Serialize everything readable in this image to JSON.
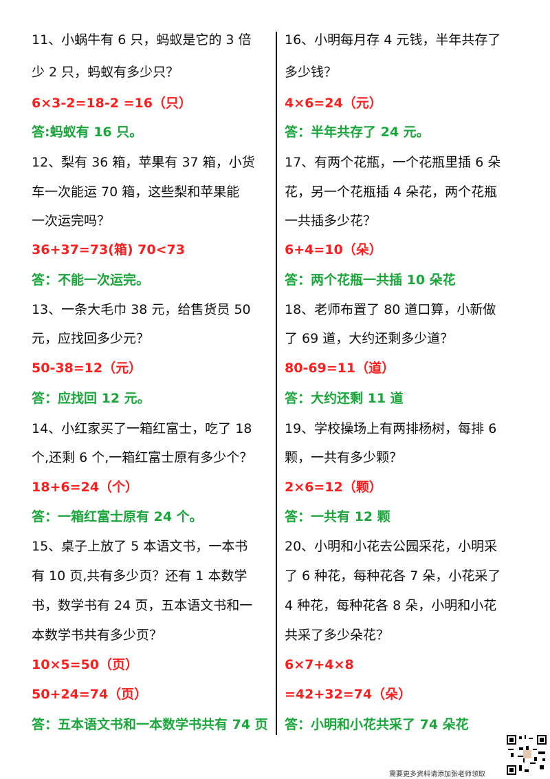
{
  "left": [
    {
      "text": "11、小蜗牛有 6 只，蚂蚁是它的 3 倍",
      "type": "q"
    },
    {
      "text": "少 2 只，蚂蚁有多少只？",
      "type": "q"
    },
    {
      "text": "6×3-2=18-2 =16（只）",
      "type": "calc"
    },
    {
      "text": "答:蚂蚁有 16 只。",
      "type": "ans"
    },
    {
      "text": "12、梨有 36 箱，苹果有 37 箱，小货",
      "type": "q"
    },
    {
      "text": "车一次能运 70 箱，这些梨和苹果能",
      "type": "q"
    },
    {
      "text": "一次运完吗？",
      "type": "q"
    },
    {
      "text": "36+37=73(箱)      70<73",
      "type": "calc"
    },
    {
      "text": " 答：不能一次运完。",
      "type": "ans"
    },
    {
      "text": "13、一条大毛巾 38 元，给售货员 50",
      "type": "q"
    },
    {
      "text": "元，应找回多少元？",
      "type": "q"
    },
    {
      "text": "50-38=12（元）",
      "type": "calc"
    },
    {
      "text": "答：应找回 12 元。",
      "type": "ans"
    },
    {
      "text": "14、小红家买了一箱红富士，吃了 18",
      "type": "q"
    },
    {
      "text": "个,还剩 6 个,一箱红富士原有多少个？",
      "type": "q"
    },
    {
      "text": "18+6=24（个）",
      "type": "calc"
    },
    {
      "text": "答：一箱红富士原有 24 个。",
      "type": "ans"
    },
    {
      "text": "15、桌子上放了 5 本语文书，一本书",
      "type": "q"
    },
    {
      "text": "有 10 页,共有多少页？还有 1 本数学",
      "type": "q"
    },
    {
      "text": "书，数学书有 24 页，五本语文书和一",
      "type": "q"
    },
    {
      "text": "本数学书共有多少页？",
      "type": "q"
    },
    {
      "text": "10×5=50（页）",
      "type": "calc"
    },
    {
      "text": "50+24=74（页）",
      "type": "calc"
    },
    {
      "text": "答：五本语文书和一本数学书共有 74 页",
      "type": "ans"
    }
  ],
  "right": [
    {
      "text": "16、小明每月存 4 元钱，半年共存了",
      "type": "q"
    },
    {
      "text": "多少钱？",
      "type": "q"
    },
    {
      "text": "4×6=24（元）",
      "type": "calc"
    },
    {
      "text": "答：半年共存了 24 元。",
      "type": "ans"
    },
    {
      "text": "17、有两个花瓶，一个花瓶里插 6 朵",
      "type": "q"
    },
    {
      "text": "花，另一个花瓶插 4 朵花，两个花瓶",
      "type": "q"
    },
    {
      "text": "一共插多少花？",
      "type": "q"
    },
    {
      "text": "6+4=10（朵）",
      "type": "calc"
    },
    {
      "text": "答：两个花瓶一共插 10 朵花",
      "type": "ans"
    },
    {
      "text": "18、老师布置了 80 道口算，小新做",
      "type": "q"
    },
    {
      "text": "了 69 道，大约还剩多少道？",
      "type": "q"
    },
    {
      "text": " 80-69=11（道）",
      "type": "calc"
    },
    {
      "text": "答：大约还剩 11 道",
      "type": "ans"
    },
    {
      "text": "19、学校操场上有两排杨树，每排 6",
      "type": "q"
    },
    {
      "text": "颗，一共有多少颗？",
      "type": "q"
    },
    {
      "text": "2×6=12（颗）",
      "type": "calc"
    },
    {
      "text": "  答：一共有 12 颗",
      "type": "ans"
    },
    {
      "text": "20、小明和小花去公园采花，小明采",
      "type": "q"
    },
    {
      "text": "了 6 种花，每种花各 7 朵，小花采了",
      "type": "q"
    },
    {
      "text": "4 种花，每种花各 8 朵，小明和小花",
      "type": "q"
    },
    {
      "text": "共采了多少朵花？",
      "type": "q"
    },
    {
      "text": "6×7+4×8",
      "type": "calc"
    },
    {
      "text": "=42+32=74（朵）",
      "type": "calc"
    },
    {
      "text": "答：小明和小花共采了 74 朵花",
      "type": "ans"
    }
  ],
  "footer": {
    "text": "需要更多资料请添加张老师领取",
    "qr_icon": "qr-code-icon"
  }
}
